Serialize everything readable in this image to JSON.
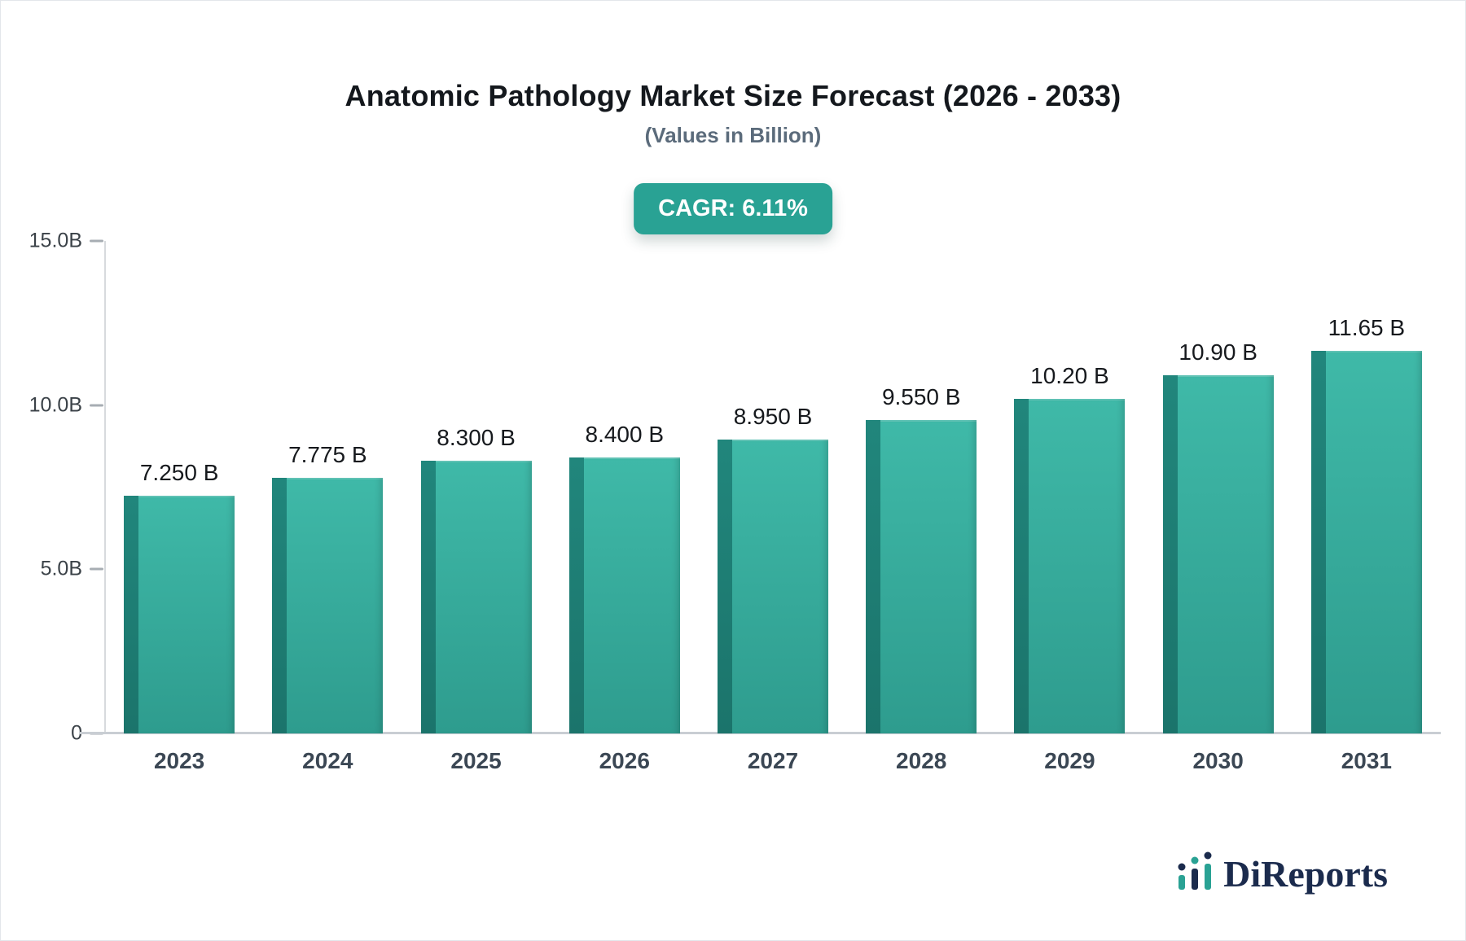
{
  "header": {
    "title": "Anatomic Pathology Market Size Forecast (2026 - 2033)",
    "subtitle": "(Values in Billion)",
    "badge_label": "CAGR: 6.11%"
  },
  "chart_data": {
    "type": "bar",
    "title": "Anatomic Pathology Market Size Forecast (2026 - 2033)",
    "subtitle": "(Values in Billion)",
    "cagr": "6.11%",
    "categories": [
      "2023",
      "2024",
      "2025",
      "2026",
      "2027",
      "2028",
      "2029",
      "2030",
      "2031"
    ],
    "values": [
      7.25,
      7.775,
      8.3,
      8.4,
      8.95,
      9.55,
      10.2,
      10.9,
      11.65
    ],
    "bar_labels": [
      "7.250 B",
      "7.775 B",
      "8.300 B",
      "8.400 B",
      "8.950 B",
      "9.550 B",
      "10.20 B",
      "10.90 B",
      "11.65 B"
    ],
    "xlabel": "",
    "ylabel": "",
    "ylim": [
      0,
      15
    ],
    "y_ticks": [
      {
        "value": 0,
        "label": "0"
      },
      {
        "value": 5,
        "label": "5.0B"
      },
      {
        "value": 10,
        "label": "10.0B"
      },
      {
        "value": 15,
        "label": "15.0B"
      }
    ],
    "grid": false,
    "legend": "none",
    "colors": {
      "bar_top": "#3fb9a8",
      "bar_bottom": "#2e9c8e",
      "bar_side_top": "#21867c",
      "bar_side_bottom": "#1b746b",
      "badge": "#29a294",
      "axis_line": "#c9ced3",
      "logo_navy": "#1b2b4d",
      "logo_teal": "#2aa294"
    }
  },
  "branding": {
    "logo_text": "DiReports"
  }
}
